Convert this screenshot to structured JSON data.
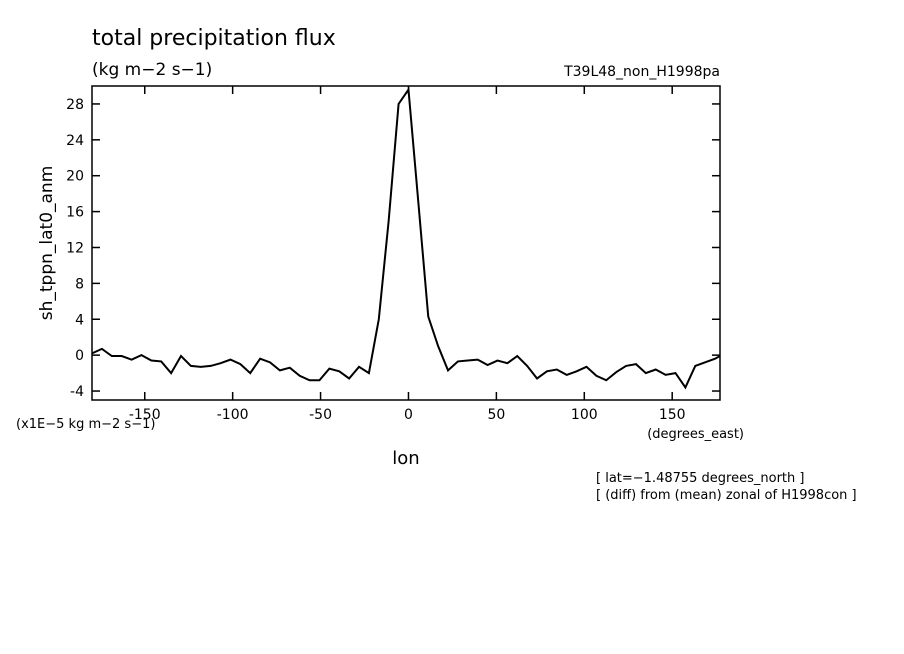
{
  "chart_data": {
    "type": "line",
    "title": "total precipitation flux",
    "subtitle": "(kg m−2 s−1)",
    "run_label": "T39L48_non_H1998pa",
    "y_label": "sh_tppn_lat0_anm",
    "y_units": "(x1E−5 kg m−2 s−1)",
    "x_label": "lon",
    "x_units": "(degrees_east)",
    "annotations": [
      "[ lat=−1.48755 degrees_north ]",
      "[ (diff) from (mean) zonal of H1998con ]"
    ],
    "color": "#000000",
    "x": [
      -180,
      -174.375,
      -168.75,
      -163.125,
      -157.5,
      -151.875,
      -146.25,
      -140.625,
      -135,
      -129.375,
      -123.75,
      -118.125,
      -112.5,
      -106.875,
      -101.25,
      -95.625,
      -90,
      -84.375,
      -78.75,
      -73.125,
      -67.5,
      -61.875,
      -56.25,
      -50.625,
      -45,
      -39.375,
      -33.75,
      -28.125,
      -22.5,
      -16.875,
      -11.25,
      -5.625,
      0,
      5.625,
      11.25,
      16.875,
      22.5,
      28.125,
      33.75,
      39.375,
      45,
      50.625,
      56.25,
      61.875,
      67.5,
      73.125,
      78.75,
      84.375,
      90,
      95.625,
      101.25,
      106.875,
      112.5,
      118.125,
      123.75,
      129.375,
      135,
      140.625,
      146.25,
      151.875,
      157.5,
      163.125,
      168.75,
      174.375,
      177.1875
    ],
    "values": [
      0.2,
      0.7,
      -0.1,
      -0.1,
      -0.5,
      0.0,
      -0.6,
      -0.7,
      -2.0,
      -0.1,
      -1.2,
      -1.3,
      -1.2,
      -0.9,
      -0.5,
      -1.0,
      -2.0,
      -0.4,
      -0.8,
      -1.7,
      -1.4,
      -2.3,
      -2.8,
      -2.8,
      -1.5,
      -1.8,
      -2.6,
      -1.3,
      -2.0,
      4.0,
      15,
      28,
      29.6,
      17,
      4.3,
      1,
      -1.7,
      -0.7,
      -0.6,
      -0.5,
      -1.1,
      -0.6,
      -0.9,
      -0.1,
      -1.2,
      -2.6,
      -1.8,
      -1.6,
      -2.2,
      -1.8,
      -1.3,
      -2.3,
      -2.8,
      -1.9,
      -1.2,
      -1.0,
      -2.0,
      -1.6,
      -2.2,
      -2.0,
      -3.6,
      -1.2,
      -0.8,
      -0.4,
      -0.1
    ],
    "xlim": [
      -180,
      177.1875
    ],
    "ylim": [
      -5,
      30
    ],
    "xticks": [
      -150,
      -100,
      -50,
      0,
      50,
      100,
      150
    ],
    "yticks": [
      -4,
      0,
      4,
      8,
      12,
      16,
      20,
      24,
      28
    ]
  }
}
